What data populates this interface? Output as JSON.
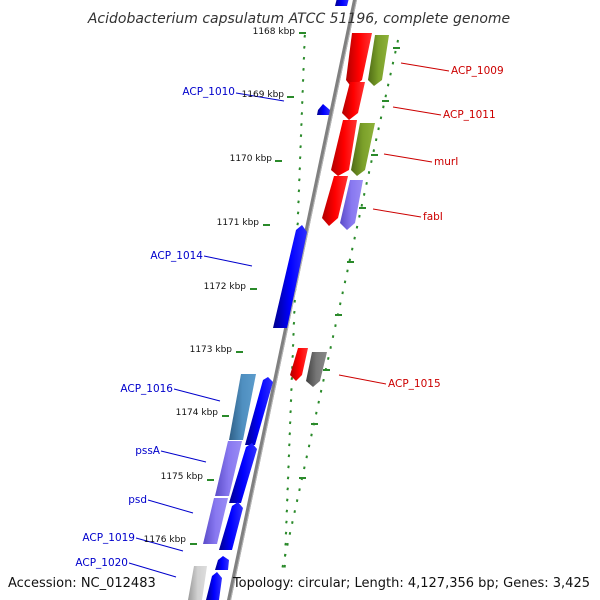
{
  "title": "Acidobacterium capsulatum ATCC 51196, complete genome",
  "accession": "Accession: NC_012483",
  "topology": "Topology: circular; Length: 4,127,356 bp; Genes: 3,425",
  "colors": {
    "reverse_label": "#0000cc",
    "forward_label": "#cc0000",
    "tick": "#2a8a2a",
    "backbone": "#8a8a8a",
    "blue": "#0000ee",
    "red": "#ee0000",
    "green": "#6b8e23",
    "purple": "#7b68ee",
    "steel": "#4682b4",
    "gray": "#666666",
    "light_gray": "#bbbbbb"
  },
  "kbp_ticks": [
    {
      "label": "1168 kbp"
    },
    {
      "label": "1169 kbp"
    },
    {
      "label": "1170 kbp"
    },
    {
      "label": "1171 kbp"
    },
    {
      "label": "1172 kbp"
    },
    {
      "label": "1173 kbp"
    },
    {
      "label": "1174 kbp"
    },
    {
      "label": "1175 kbp"
    },
    {
      "label": "1176 kbp"
    }
  ],
  "gene_labels_reverse": [
    {
      "label": "ACP_1010"
    },
    {
      "label": "ACP_1014"
    },
    {
      "label": "ACP_1016"
    },
    {
      "label": "pssA"
    },
    {
      "label": "psd"
    },
    {
      "label": "ACP_1019"
    },
    {
      "label": "ACP_1020"
    }
  ],
  "gene_labels_forward": [
    {
      "label": "ACP_1009"
    },
    {
      "label": "ACP_1011"
    },
    {
      "label": "murI"
    },
    {
      "label": "fabI"
    },
    {
      "label": "ACP_1015"
    }
  ]
}
